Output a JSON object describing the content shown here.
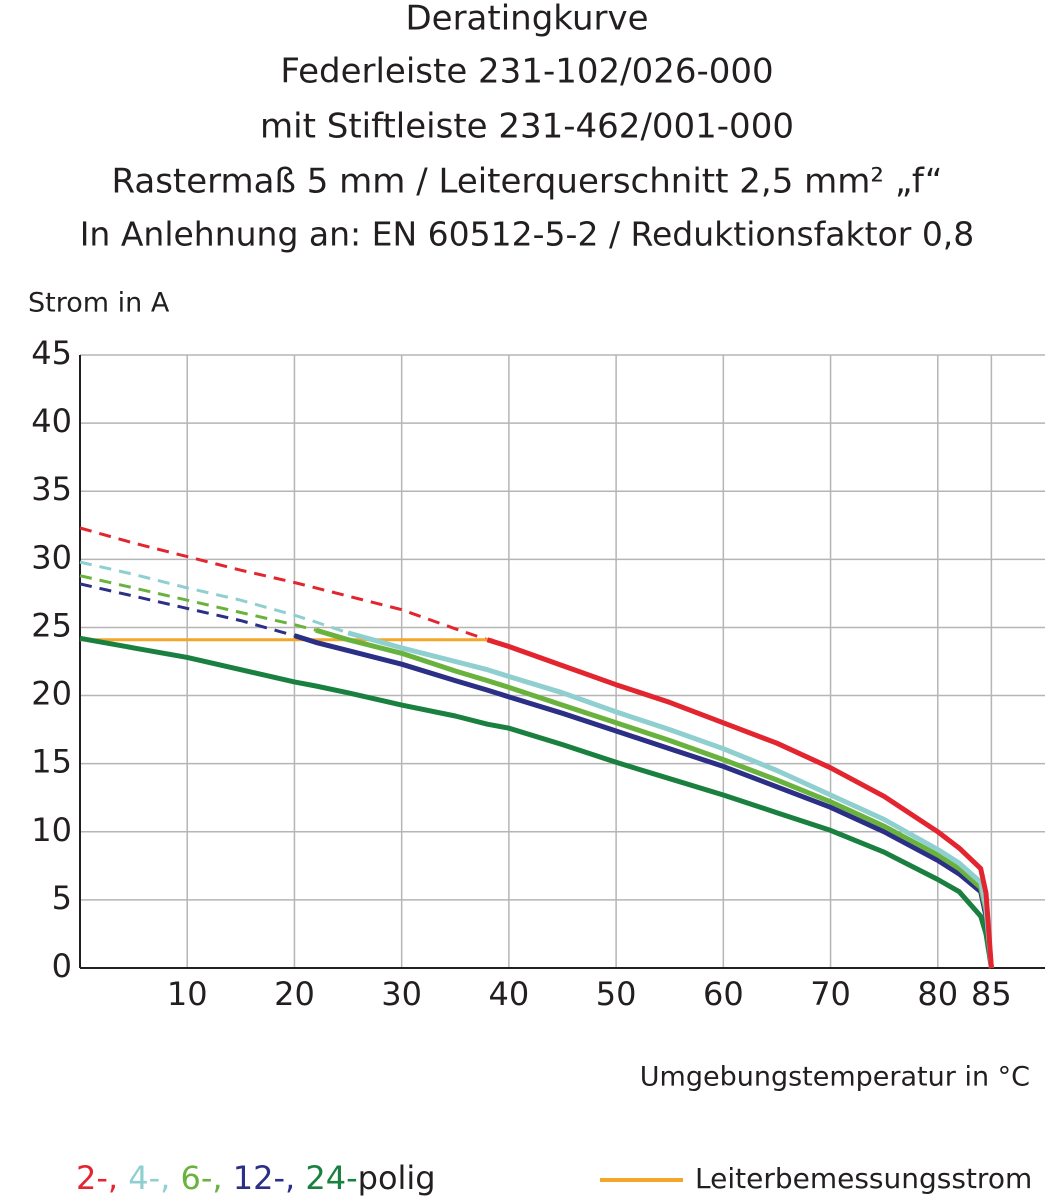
{
  "chart_data": {
    "type": "line",
    "title": [
      "Deratingkurve",
      "Federleiste 231-102/026-000",
      "mit Stiftleiste 231-462/001-000",
      "Rastermaß 5 mm / Leiterquerschnitt 2,5 mm² „f“",
      "In Anlehnung an: EN 60512-5-2 / Reduktionsfaktor 0,8"
    ],
    "y_label": "Strom in A",
    "x_label": "Umgebungstemperatur in °C",
    "xlim": [
      0,
      90
    ],
    "ylim": [
      0,
      45
    ],
    "xticks": [
      10,
      20,
      30,
      40,
      50,
      60,
      70,
      80,
      85
    ],
    "yticks": [
      0,
      5,
      10,
      15,
      20,
      25,
      30,
      35,
      40,
      45
    ],
    "grid": true,
    "x": [
      0,
      5,
      10,
      15,
      20,
      22,
      25,
      30,
      35,
      38,
      40,
      45,
      50,
      55,
      60,
      65,
      70,
      75,
      80,
      82,
      84,
      84.5,
      85
    ],
    "series": [
      {
        "name": "2-,",
        "color": "#e32530",
        "dashed": [
          32.3,
          31.2,
          30.2,
          29.2,
          28.3,
          27.9,
          27.3,
          26.3,
          24.9,
          24.1,
          null,
          null,
          null,
          null,
          null,
          null,
          null,
          null,
          null,
          null,
          null,
          null,
          null
        ],
        "values": [
          null,
          null,
          null,
          null,
          null,
          null,
          null,
          null,
          null,
          24.1,
          23.6,
          22.2,
          20.8,
          19.5,
          18.0,
          16.5,
          14.7,
          12.6,
          10.0,
          8.8,
          7.3,
          5.5,
          0
        ]
      },
      {
        "name": "4-,",
        "color": "#8fcfd0",
        "dashed": [
          29.8,
          28.9,
          27.9,
          27.0,
          25.9,
          25.4,
          24.6,
          null,
          null,
          null,
          null,
          null,
          null,
          null,
          null,
          null,
          null,
          null,
          null,
          null,
          null,
          null,
          null
        ],
        "values": [
          null,
          null,
          null,
          null,
          null,
          null,
          24.6,
          23.5,
          22.5,
          21.9,
          21.4,
          20.2,
          18.8,
          17.5,
          16.1,
          14.5,
          12.7,
          10.9,
          8.7,
          7.7,
          6.3,
          4.5,
          0
        ]
      },
      {
        "name": "6-,",
        "color": "#6ab23e",
        "dashed": [
          28.8,
          27.9,
          27.0,
          26.1,
          25.2,
          24.8,
          null,
          null,
          null,
          null,
          null,
          null,
          null,
          null,
          null,
          null,
          null,
          null,
          null,
          null,
          null,
          null,
          null
        ],
        "values": [
          null,
          null,
          null,
          null,
          null,
          24.8,
          24.1,
          23.1,
          21.8,
          21.1,
          20.6,
          19.3,
          18.0,
          16.7,
          15.3,
          13.8,
          12.2,
          10.4,
          8.3,
          7.3,
          5.9,
          4.2,
          0
        ]
      },
      {
        "name": "12-,",
        "color": "#2c2f86",
        "dashed": [
          28.2,
          27.3,
          26.4,
          25.5,
          24.4,
          null,
          null,
          null,
          null,
          null,
          null,
          null,
          null,
          null,
          null,
          null,
          null,
          null,
          null,
          null,
          null,
          null,
          null
        ],
        "values": [
          null,
          null,
          null,
          null,
          24.4,
          23.9,
          23.3,
          22.3,
          21.1,
          20.4,
          19.9,
          18.7,
          17.4,
          16.1,
          14.8,
          13.3,
          11.8,
          10.0,
          7.9,
          6.9,
          5.6,
          3.8,
          0
        ]
      },
      {
        "name": "24-",
        "color": "#1a8040",
        "values": [
          24.2,
          23.5,
          22.8,
          21.9,
          21.0,
          20.7,
          20.2,
          19.3,
          18.5,
          17.9,
          17.6,
          16.4,
          15.1,
          13.9,
          12.7,
          11.4,
          10.1,
          8.5,
          6.5,
          5.6,
          3.8,
          2.5,
          0
        ]
      }
    ],
    "legend_suffix": "polig",
    "reference_line": {
      "name": "Leiterbemessungsstrom",
      "color": "#f4a62a",
      "x": [
        0,
        38.5
      ],
      "values": [
        24.1,
        24.1
      ]
    }
  }
}
